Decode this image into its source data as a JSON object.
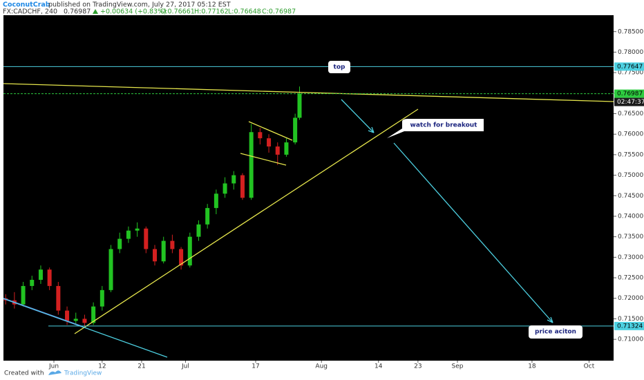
{
  "header": {
    "author": "CoconutCrab",
    "published": "published on TradingView.com, July 27, 2017 05:12 EST",
    "symbol": "FX:CADCHF, 240",
    "last": "0.76987",
    "change": "+0.00634 (+0.83%)",
    "ohlc": [
      "O:0.76661",
      "H:0.77162",
      "L:0.76648",
      "C:0.76987"
    ]
  },
  "chart_data": {
    "type": "candlestick",
    "x": [
      -11,
      -9,
      -7,
      -5,
      -3,
      -1,
      1,
      3,
      5,
      7,
      9,
      11,
      13,
      15,
      17,
      19,
      21,
      23,
      25,
      27,
      29,
      31,
      33,
      35,
      37,
      39,
      41,
      43,
      45,
      47,
      49,
      51,
      53,
      55,
      56
    ],
    "open": [
      0.72,
      0.7195,
      0.7185,
      0.723,
      0.7245,
      0.727,
      0.723,
      0.717,
      0.7145,
      0.715,
      0.714,
      0.718,
      0.722,
      0.732,
      0.7345,
      0.7365,
      0.737,
      0.732,
      0.729,
      0.734,
      0.732,
      0.728,
      0.735,
      0.738,
      0.742,
      0.7455,
      0.748,
      0.75,
      0.7445,
      0.7605,
      0.759,
      0.757,
      0.755,
      0.758,
      0.764
    ],
    "high": [
      0.721,
      0.7215,
      0.724,
      0.7255,
      0.728,
      0.7275,
      0.724,
      0.718,
      0.7165,
      0.716,
      0.719,
      0.723,
      0.733,
      0.736,
      0.7375,
      0.7385,
      0.7375,
      0.733,
      0.735,
      0.7355,
      0.7325,
      0.736,
      0.739,
      0.743,
      0.7465,
      0.7495,
      0.751,
      0.7505,
      0.7625,
      0.7615,
      0.76,
      0.758,
      0.759,
      0.765,
      0.77162
    ],
    "low": [
      0.7185,
      0.7175,
      0.718,
      0.722,
      0.7235,
      0.722,
      0.716,
      0.7135,
      0.7135,
      0.713,
      0.7135,
      0.717,
      0.7215,
      0.731,
      0.7335,
      0.735,
      0.731,
      0.728,
      0.7285,
      0.731,
      0.727,
      0.7275,
      0.734,
      0.737,
      0.7405,
      0.7445,
      0.7465,
      0.744,
      0.744,
      0.7575,
      0.7555,
      0.7525,
      0.7545,
      0.7575,
      0.7635
    ],
    "close": [
      0.7195,
      0.7185,
      0.723,
      0.7245,
      0.727,
      0.723,
      0.717,
      0.7145,
      0.715,
      0.714,
      0.718,
      0.722,
      0.732,
      0.7345,
      0.7365,
      0.737,
      0.732,
      0.729,
      0.734,
      0.732,
      0.728,
      0.735,
      0.738,
      0.742,
      0.7455,
      0.748,
      0.75,
      0.7445,
      0.7605,
      0.759,
      0.757,
      0.755,
      0.758,
      0.764,
      0.76987
    ],
    "up_color": "#22c322",
    "down_color": "#d32020",
    "xlim": [
      -11.5,
      127.6
    ],
    "xticks": [
      {
        "value": 0,
        "label": "Jun"
      },
      {
        "value": 11,
        "label": "12"
      },
      {
        "value": 20,
        "label": "21"
      },
      {
        "value": 30,
        "label": "Jul"
      },
      {
        "value": 46,
        "label": "17"
      },
      {
        "value": 61,
        "label": "Aug"
      },
      {
        "value": 74,
        "label": "14"
      },
      {
        "value": 83,
        "label": "23"
      },
      {
        "value": 92,
        "label": "Sep"
      },
      {
        "value": 109,
        "label": "18"
      },
      {
        "value": 122,
        "label": "Oct"
      }
    ],
    "ylim": [
      0.7048,
      0.789
    ],
    "yticks": [
      {
        "value": 0.785,
        "label": "0.78500"
      },
      {
        "value": 0.78,
        "label": "0.78000"
      },
      {
        "value": 0.775,
        "label": "0.77500"
      },
      {
        "value": 0.77,
        "label": "0.77000"
      },
      {
        "value": 0.765,
        "label": "0.76500"
      },
      {
        "value": 0.76,
        "label": "0.76000"
      },
      {
        "value": 0.755,
        "label": "0.75500"
      },
      {
        "value": 0.75,
        "label": "0.75000"
      },
      {
        "value": 0.745,
        "label": "0.74500"
      },
      {
        "value": 0.74,
        "label": "0.74000"
      },
      {
        "value": 0.735,
        "label": "0.73500"
      },
      {
        "value": 0.73,
        "label": "0.73000"
      },
      {
        "value": 0.725,
        "label": "0.72500"
      },
      {
        "value": 0.72,
        "label": "0.72000"
      },
      {
        "value": 0.715,
        "label": "0.71500"
      },
      {
        "value": 0.71,
        "label": "0.71000"
      }
    ],
    "levels": [
      {
        "value": 0.77647,
        "label": "0.77647",
        "color": "#4dd0e1"
      },
      {
        "value": 0.76987,
        "label": "0.76987",
        "color": "#2ecc40"
      },
      {
        "value": 0.71324,
        "label": "0.71324",
        "color": "#4dd0e1"
      }
    ],
    "countdown": "02:47:37",
    "grid": false
  },
  "annotations": {
    "top": "top",
    "breakout": "watch for breakout",
    "price_action": "price aciton"
  },
  "footer": {
    "created": "Created with",
    "brand": "TradingView"
  }
}
